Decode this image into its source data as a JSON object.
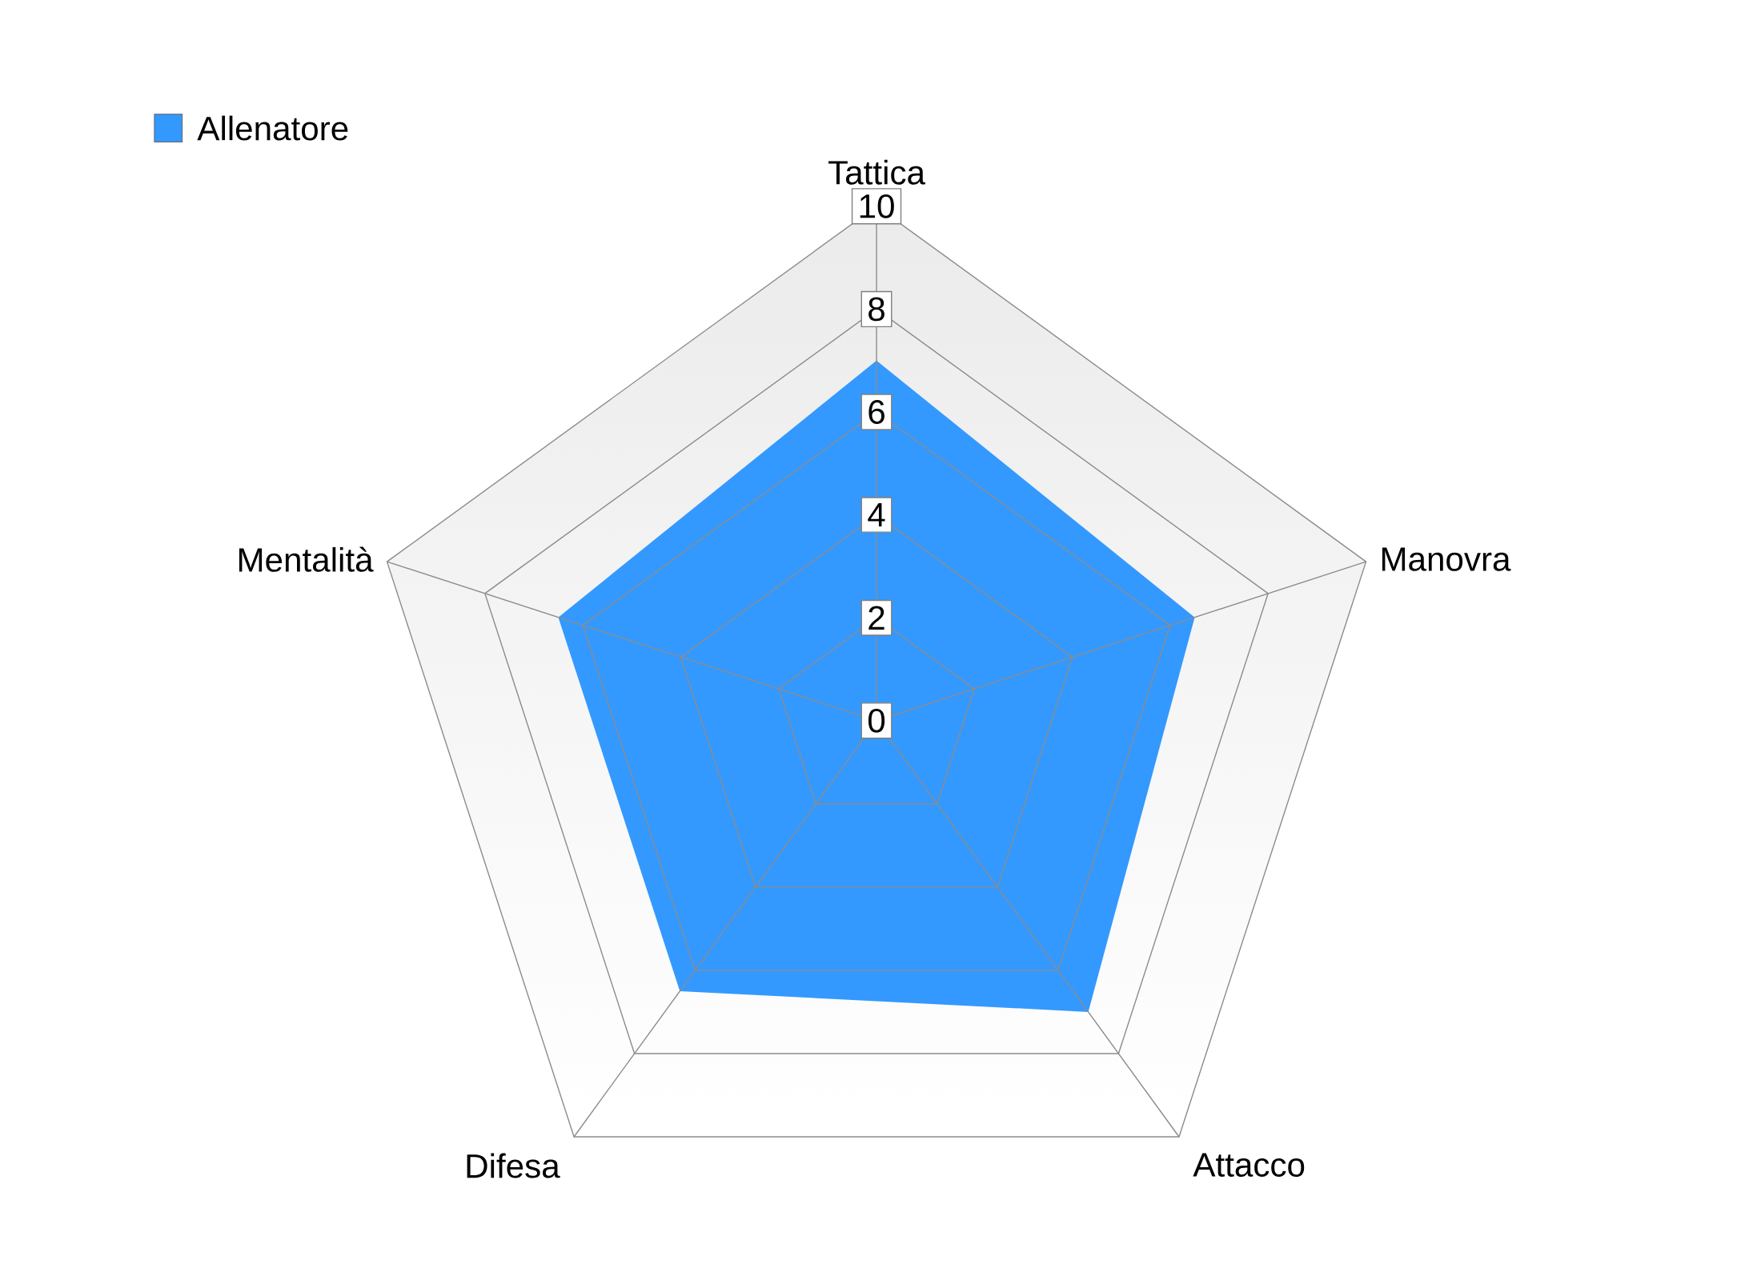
{
  "chart_data": {
    "type": "radar",
    "categories": [
      "Tattica",
      "Manovra",
      "Attacco",
      "Difesa",
      "Mentalità"
    ],
    "series": [
      {
        "name": "Allenatore",
        "color": "#3399ff",
        "values": [
          7,
          6.5,
          7,
          6.5,
          6.5
        ]
      }
    ],
    "ylim": [
      0,
      10
    ],
    "yticks": [
      0,
      2,
      4,
      6,
      8,
      10
    ],
    "grid": true,
    "legend": "top left"
  }
}
